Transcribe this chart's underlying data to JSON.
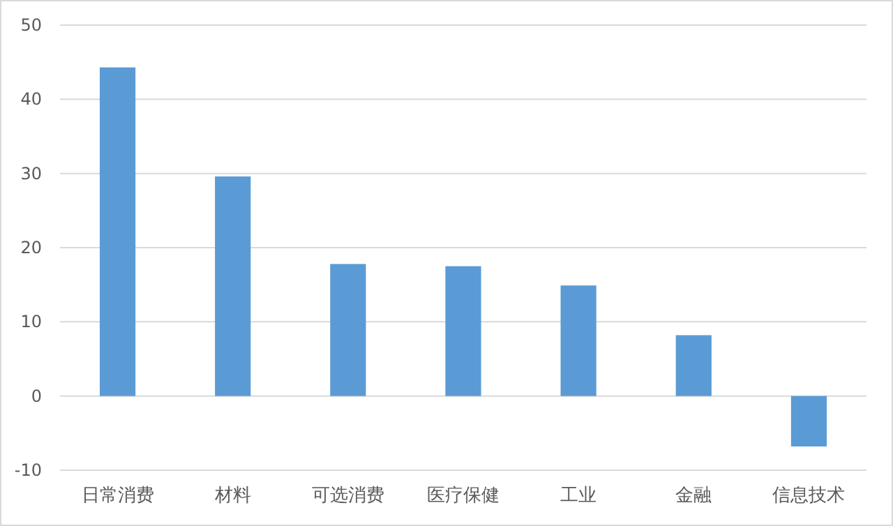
{
  "chart_data": {
    "type": "bar",
    "categories": [
      "日常消费",
      "材料",
      "可选消费",
      "医疗保健",
      "工业",
      "金融",
      "信息技术"
    ],
    "values": [
      44.3,
      29.6,
      17.8,
      17.5,
      14.9,
      8.2,
      -6.8
    ],
    "color": "#5b9bd5",
    "ylim": [
      -10,
      50
    ],
    "yticks": [
      -10,
      0,
      10,
      20,
      30,
      40,
      50
    ],
    "grid": "y"
  }
}
